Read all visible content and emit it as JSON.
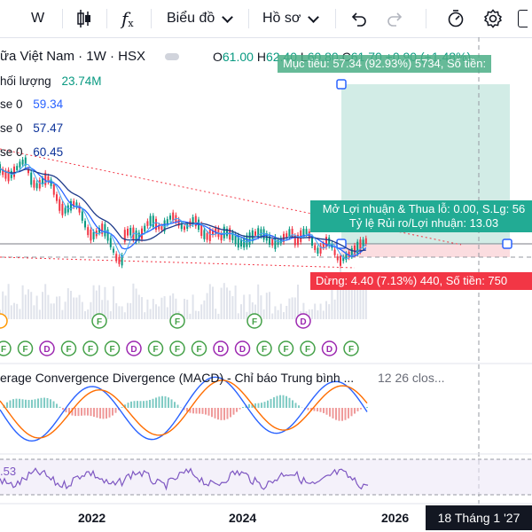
{
  "toolbar": {
    "interval": "W",
    "indicators_label": "f",
    "chart_menu": "Biểu đồ",
    "profile_menu": "Hồ sơ"
  },
  "symbol": {
    "title": "ữa Việt Nam · 1W · HSX",
    "open_label": "O",
    "open": "61.00",
    "high_label": "H",
    "high": "62.40",
    "low_label": "L",
    "low": "60.80",
    "close_label": "C",
    "close": "61.70 +0.90 (+1.48%)"
  },
  "volume": {
    "label": "hối lượng",
    "value": "23.74M"
  },
  "ma_lines": [
    {
      "label": "se 0",
      "value": "59.34"
    },
    {
      "label": "se 0",
      "value": "57.47"
    },
    {
      "label": "se 0",
      "value": "60.45"
    }
  ],
  "position_tool": {
    "target": "Mục tiêu: 57.34 (92.93%) 5734, Số tiền:",
    "pnl": "Mở Lợi nhuận & Thua lỗ: 0.00, S.Lg: 56",
    "ratio": "Tỷ lệ Rủi ro/Lợi nhuận: 13.03",
    "stop": "Dừng: 4.40 (7.13%) 440, Số tiền: 750"
  },
  "macd": {
    "label": "erage Convergence Divergence (MACD) - Chỉ báo Trung bình ...",
    "params": "12 26 clos..."
  },
  "rsi": {
    "value": ".53"
  },
  "x_axis": [
    "2022",
    "2024",
    "2026"
  ],
  "crosshair_date": "18 Tháng 1 '27",
  "event_markers": {
    "top_row": [
      "F",
      "F",
      "F",
      "F",
      "D"
    ],
    "bottom_row": [
      "F",
      "F",
      "D",
      "F",
      "F",
      "F",
      "D",
      "F",
      "F",
      "F",
      "D",
      "D",
      "F",
      "F",
      "F",
      "D",
      "F"
    ]
  },
  "colors": {
    "up": "#089981",
    "down": "#f23645",
    "target_zone": "#d2ece6",
    "stop_zone": "#fbdde0",
    "ma_blue": "#2962ff",
    "rsi": "#7e57c2"
  }
}
